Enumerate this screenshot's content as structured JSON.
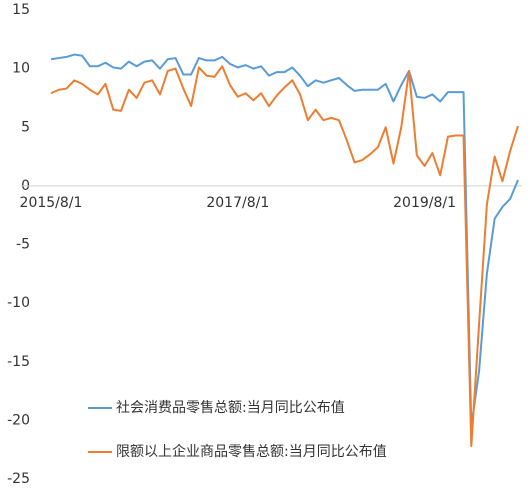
{
  "chart_data": {
    "type": "line",
    "categories": [
      "2015/8/1",
      null,
      null,
      null,
      null,
      null,
      null,
      null,
      null,
      null,
      null,
      null,
      null,
      null,
      null,
      null,
      null,
      null,
      null,
      null,
      null,
      null,
      null,
      null,
      "2017/8/1",
      null,
      null,
      null,
      null,
      null,
      null,
      null,
      null,
      null,
      null,
      null,
      null,
      null,
      null,
      null,
      null,
      null,
      null,
      null,
      null,
      null,
      null,
      null,
      "2019/8/1",
      null,
      null,
      null,
      null,
      null,
      null,
      null,
      null,
      null,
      null,
      null,
      null
    ],
    "series": [
      {
        "name": "社会消费品零售总额:当月同比公布值",
        "color": "#5b9bd5",
        "values": [
          10.8,
          10.9,
          11.0,
          11.2,
          11.1,
          10.2,
          10.2,
          10.5,
          10.1,
          10.0,
          10.6,
          10.2,
          10.6,
          10.7,
          10.0,
          10.8,
          10.9,
          9.5,
          9.5,
          10.9,
          10.7,
          10.7,
          11.0,
          10.4,
          10.1,
          10.3,
          10.0,
          10.2,
          9.4,
          9.7,
          9.7,
          10.1,
          9.4,
          8.5,
          9.0,
          8.8,
          9.0,
          9.2,
          8.6,
          8.1,
          8.2,
          8.2,
          8.2,
          8.7,
          7.2,
          8.6,
          9.8,
          7.6,
          7.5,
          7.8,
          7.2,
          8.0,
          8.0,
          8.0,
          -20.5,
          -15.8,
          -7.5,
          -2.8,
          -1.8,
          -1.1,
          0.5
        ]
      },
      {
        "name": "限额以上企业商品零售总额:当月同比公布值",
        "color": "#ed7d31",
        "values": [
          7.9,
          8.2,
          8.3,
          9.0,
          8.7,
          8.2,
          7.8,
          8.7,
          6.5,
          6.4,
          8.2,
          7.5,
          8.8,
          9.0,
          7.8,
          9.8,
          10.0,
          8.3,
          6.8,
          10.1,
          9.4,
          9.3,
          10.2,
          8.6,
          7.6,
          7.9,
          7.3,
          7.9,
          6.8,
          7.7,
          8.4,
          9.0,
          7.8,
          5.6,
          6.5,
          5.6,
          5.8,
          5.6,
          3.9,
          2.0,
          2.2,
          2.7,
          3.3,
          5.0,
          1.9,
          5.0,
          9.8,
          2.6,
          1.7,
          2.8,
          0.9,
          4.2,
          4.3,
          4.3,
          -22.2,
          -11.8,
          -1.6,
          2.5,
          0.4,
          3.0,
          5.1
        ]
      }
    ],
    "ylim": [
      -25,
      15
    ],
    "yticks": [
      15,
      10,
      5,
      0,
      -5,
      -10,
      -15,
      -20,
      -25
    ],
    "negative_tick_color": "#e0302b",
    "grid": false,
    "legend": "lower left"
  }
}
